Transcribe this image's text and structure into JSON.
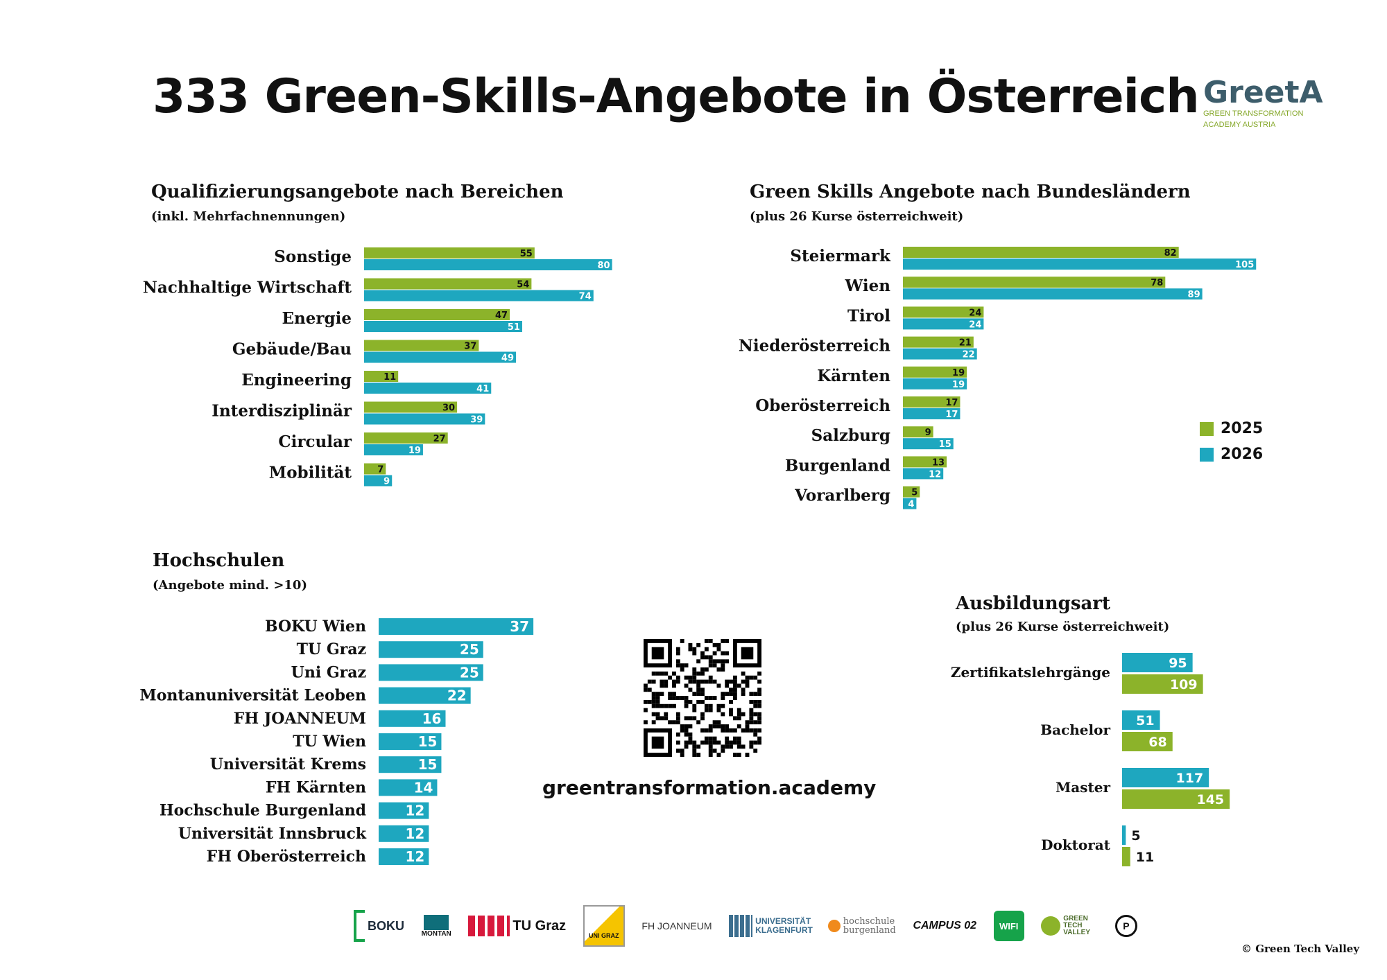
{
  "title": "333 Green-Skills-Angebote in Österreich",
  "logo": {
    "name": "GreetA",
    "line1": "GREEN TRANSFORMATION",
    "line2": "ACADEMY AUSTRIA"
  },
  "colors": {
    "green": "#8cb32a",
    "teal": "#1ea7bf"
  },
  "sections": {
    "bereiche": {
      "title": "Qualifizierungsangebote nach Bereichen",
      "subtitle": "(inkl. Mehrfachnennungen)"
    },
    "bundeslaender": {
      "title": "Green Skills Angebote nach Bundesländern",
      "subtitle": "(plus 26 Kurse österreichweit)"
    },
    "hochschulen": {
      "title": "Hochschulen",
      "subtitle": "(Angebote mind. >10)"
    },
    "ausbildungsart": {
      "title": "Ausbildungsart",
      "subtitle": "(plus 26 Kurse österreichweit)"
    }
  },
  "legend": {
    "items": [
      "2025",
      "2026"
    ]
  },
  "website": "greentransformation.academy",
  "partners": [
    "BOKU",
    "MONTAN",
    "TU Graz",
    "UNI GRAZ",
    "FH JOANNEUM",
    "UNIVERSITÄT KLAGENFURT",
    "hochschule burgenland",
    "CAMPUS 02",
    "WIFI",
    "GREEN TECH VALLEY",
    "P"
  ],
  "copyright": "© Green Tech Valley",
  "chart_data": [
    {
      "type": "bar",
      "orientation": "horizontal",
      "categories": [
        "Sonstige",
        "Nachhaltige Wirtschaft",
        "Energie",
        "Gebäude/Bau",
        "Engineering",
        "Interdisziplinär",
        "Circular",
        "Mobilität"
      ],
      "series": [
        {
          "name": "2025",
          "values": [
            55,
            54,
            47,
            37,
            11,
            30,
            27,
            7
          ]
        },
        {
          "name": "2026",
          "values": [
            80,
            74,
            51,
            49,
            41,
            39,
            19,
            9
          ]
        }
      ]
    },
    {
      "type": "bar",
      "orientation": "horizontal",
      "categories": [
        "Steiermark",
        "Wien",
        "Tirol",
        "Niederösterreich",
        "Kärnten",
        "Oberösterreich",
        "Salzburg",
        "Burgenland",
        "Vorarlberg"
      ],
      "series": [
        {
          "name": "2025",
          "values": [
            82,
            78,
            24,
            21,
            19,
            17,
            9,
            13,
            5
          ]
        },
        {
          "name": "2026",
          "values": [
            105,
            89,
            24,
            22,
            19,
            17,
            15,
            12,
            4
          ]
        }
      ]
    },
    {
      "type": "bar",
      "orientation": "horizontal",
      "categories": [
        "BOKU Wien",
        "TU Graz",
        "Uni Graz",
        "Montanuniversität Leoben",
        "FH JOANNEUM",
        "TU Wien",
        "Universität Krems",
        "FH Kärnten",
        "Hochschule Burgenland",
        "Universität Innsbruck",
        "FH Oberösterreich"
      ],
      "values": [
        37,
        25,
        25,
        22,
        16,
        15,
        15,
        14,
        12,
        12,
        12
      ]
    },
    {
      "type": "bar",
      "orientation": "horizontal",
      "categories": [
        "Zertifikatslehrgänge",
        "Bachelor",
        "Master",
        "Doktorat"
      ],
      "series": [
        {
          "values": [
            95,
            51,
            117,
            5
          ]
        },
        {
          "values": [
            109,
            68,
            145,
            11
          ]
        }
      ]
    }
  ]
}
